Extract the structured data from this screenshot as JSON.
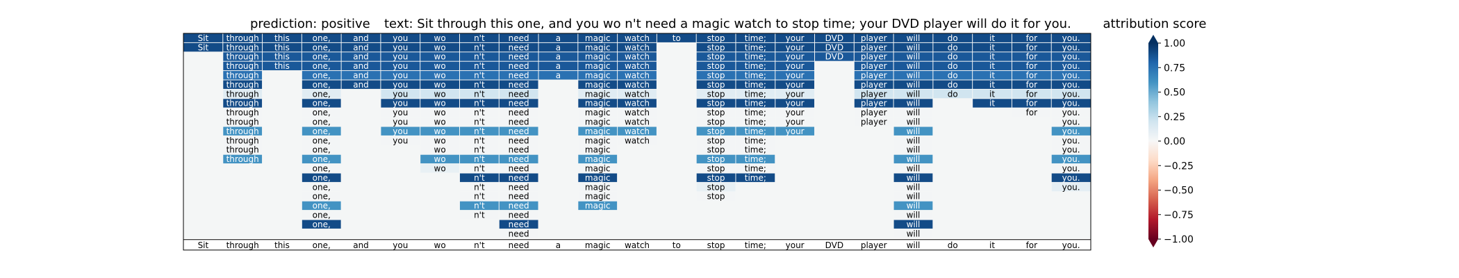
{
  "header": {
    "prediction_text": "prediction:  positive",
    "text_label": "text:  Sit through this one, and you wo n't need a magic watch to stop time; your DVD player will do it for you."
  },
  "colorbar": {
    "title": "attribution score",
    "ticks": [
      "1.00",
      "0.75",
      "0.50",
      "0.25",
      "0.00",
      "−0.25",
      "−0.50",
      "−0.75",
      "−1.00"
    ]
  },
  "chart_data": {
    "type": "heatmap",
    "tokens": [
      "Sit",
      "through",
      "this",
      "one,",
      "and",
      "you",
      "wo",
      "n't",
      "need",
      "a",
      "magic",
      "watch",
      "to",
      "stop",
      "time;",
      "your",
      "DVD",
      "player",
      "will",
      "do",
      "it",
      "for",
      "you."
    ],
    "colorbar_range": [
      -1,
      1
    ],
    "rows": [
      [
        0.9,
        0.9,
        0.9,
        0.9,
        0.9,
        0.9,
        0.9,
        0.9,
        0.9,
        0.9,
        0.9,
        0.9,
        0.9,
        0.9,
        0.9,
        0.9,
        0.9,
        0.9,
        0.9,
        0.9,
        0.9,
        0.9,
        0.9
      ],
      [
        0.9,
        0.9,
        0.9,
        0.9,
        0.9,
        0.9,
        0.9,
        0.9,
        0.9,
        0.9,
        0.9,
        0.9,
        null,
        0.9,
        0.9,
        0.9,
        0.9,
        0.9,
        0.9,
        0.9,
        0.9,
        0.9,
        0.9
      ],
      [
        null,
        0.85,
        0.85,
        0.85,
        0.85,
        0.85,
        0.85,
        0.85,
        0.85,
        0.85,
        0.85,
        0.85,
        null,
        0.85,
        0.85,
        0.85,
        0.85,
        0.85,
        0.85,
        0.85,
        0.85,
        0.85,
        0.85
      ],
      [
        null,
        0.85,
        0.85,
        0.85,
        0.85,
        0.85,
        0.85,
        0.85,
        0.85,
        0.85,
        0.85,
        0.85,
        null,
        0.85,
        0.85,
        0.85,
        null,
        0.85,
        0.85,
        0.85,
        0.85,
        0.85,
        0.85
      ],
      [
        null,
        0.75,
        null,
        0.75,
        0.75,
        0.75,
        0.75,
        0.75,
        0.75,
        0.75,
        0.75,
        0.75,
        null,
        0.75,
        0.75,
        0.75,
        null,
        0.75,
        0.75,
        0.75,
        0.75,
        0.75,
        0.75
      ],
      [
        null,
        0.9,
        null,
        0.9,
        0.9,
        0.9,
        0.9,
        0.9,
        0.9,
        null,
        0.9,
        0.9,
        null,
        0.9,
        0.9,
        0.9,
        null,
        0.9,
        0.9,
        0.9,
        0.9,
        0.9,
        0.9
      ],
      [
        null,
        0.12,
        null,
        0.12,
        null,
        0.2,
        0.2,
        0.2,
        0.2,
        null,
        0.12,
        0.12,
        null,
        0.12,
        0.12,
        0.12,
        null,
        0.2,
        0.2,
        0.2,
        0.2,
        0.2,
        0.2
      ],
      [
        null,
        0.9,
        null,
        0.9,
        null,
        0.9,
        0.9,
        0.9,
        0.9,
        null,
        0.9,
        0.9,
        null,
        0.9,
        0.9,
        0.9,
        null,
        0.9,
        0.9,
        null,
        0.9,
        0.9,
        0.9
      ],
      [
        null,
        0.02,
        null,
        0.02,
        null,
        0.02,
        0.02,
        0.02,
        0.02,
        null,
        0.02,
        0.02,
        null,
        0.02,
        0.02,
        0.02,
        null,
        0.02,
        0.02,
        null,
        null,
        0.02,
        0.02
      ],
      [
        null,
        0.02,
        null,
        0.02,
        null,
        0.02,
        0.02,
        0.02,
        0.02,
        null,
        0.02,
        0.02,
        null,
        0.02,
        0.02,
        0.02,
        null,
        0.02,
        0.02,
        null,
        null,
        null,
        0.02
      ],
      [
        null,
        0.6,
        null,
        0.6,
        null,
        0.6,
        0.6,
        0.6,
        0.6,
        null,
        0.6,
        0.6,
        null,
        0.6,
        0.6,
        0.6,
        null,
        null,
        0.6,
        null,
        null,
        null,
        0.6
      ],
      [
        null,
        0.02,
        null,
        0.02,
        null,
        0.02,
        0.02,
        0.02,
        0.02,
        null,
        0.02,
        0.02,
        null,
        0.02,
        0.02,
        null,
        null,
        null,
        0.02,
        null,
        null,
        null,
        0.02
      ],
      [
        null,
        0.02,
        null,
        0.02,
        null,
        null,
        0.02,
        0.02,
        0.02,
        null,
        0.02,
        null,
        null,
        0.02,
        0.02,
        null,
        null,
        null,
        0.02,
        null,
        null,
        null,
        0.02
      ],
      [
        null,
        0.6,
        null,
        0.6,
        null,
        null,
        0.6,
        0.6,
        0.6,
        null,
        0.6,
        null,
        null,
        0.6,
        0.6,
        null,
        null,
        null,
        0.6,
        null,
        null,
        null,
        0.6
      ],
      [
        null,
        null,
        null,
        0.02,
        null,
        null,
        0.08,
        0.02,
        0.02,
        null,
        0.02,
        null,
        null,
        0.02,
        0.02,
        null,
        null,
        null,
        0.02,
        null,
        null,
        null,
        0.02
      ],
      [
        null,
        null,
        null,
        0.9,
        null,
        null,
        null,
        0.9,
        0.9,
        null,
        0.9,
        null,
        null,
        0.9,
        0.9,
        null,
        null,
        null,
        0.9,
        null,
        null,
        null,
        0.9
      ],
      [
        null,
        null,
        null,
        0.02,
        null,
        null,
        null,
        0.02,
        0.02,
        null,
        0.02,
        null,
        null,
        0.08,
        null,
        null,
        null,
        null,
        0.02,
        null,
        null,
        null,
        0.1
      ],
      [
        null,
        null,
        null,
        0.02,
        null,
        null,
        null,
        0.02,
        0.02,
        null,
        0.02,
        null,
        null,
        0.02,
        null,
        null,
        null,
        null,
        0.02,
        null,
        null,
        null,
        null
      ],
      [
        null,
        null,
        null,
        0.6,
        null,
        null,
        null,
        0.6,
        0.6,
        null,
        0.6,
        null,
        null,
        null,
        null,
        null,
        null,
        null,
        0.6,
        null,
        null,
        null,
        null
      ],
      [
        null,
        null,
        null,
        0.02,
        null,
        null,
        null,
        0.02,
        0.02,
        null,
        null,
        null,
        null,
        null,
        null,
        null,
        null,
        null,
        0.02,
        null,
        null,
        null,
        null
      ],
      [
        null,
        null,
        null,
        0.9,
        null,
        null,
        null,
        null,
        0.9,
        null,
        null,
        null,
        null,
        null,
        null,
        null,
        null,
        null,
        0.9,
        null,
        null,
        null,
        null
      ],
      [
        null,
        null,
        null,
        null,
        null,
        null,
        null,
        null,
        0.02,
        null,
        null,
        null,
        null,
        null,
        null,
        null,
        null,
        null,
        0.02,
        null,
        null,
        null,
        null
      ]
    ],
    "bottom_row": [
      "Sit",
      "through",
      "this",
      "one,",
      "and",
      "you",
      "wo",
      "n't",
      "need",
      "a",
      "magic",
      "watch",
      "to",
      "stop",
      "time;",
      "your",
      "DVD",
      "player",
      "will",
      "do",
      "it",
      "for",
      "you."
    ]
  }
}
